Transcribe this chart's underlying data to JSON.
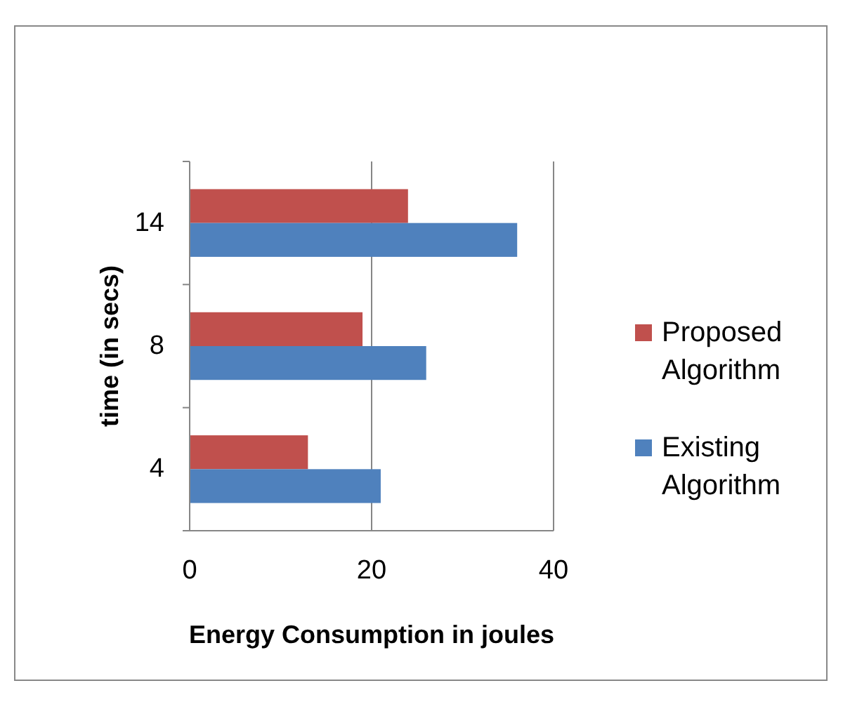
{
  "chart_data": {
    "type": "bar",
    "orientation": "horizontal",
    "xlabel": "Energy Consumption in joules",
    "ylabel": "time (in secs)",
    "categories": [
      "14",
      "8",
      "4"
    ],
    "series": [
      {
        "name": "Proposed Algorithm",
        "color": "#c0504d",
        "values": [
          24,
          19,
          13
        ]
      },
      {
        "name": "Existing Algorithm",
        "color": "#4f81bd",
        "values": [
          36,
          26,
          21
        ]
      }
    ],
    "xlim": [
      0,
      40
    ],
    "xticks": [
      0,
      20,
      40
    ],
    "grid": "x",
    "legend": "right"
  }
}
